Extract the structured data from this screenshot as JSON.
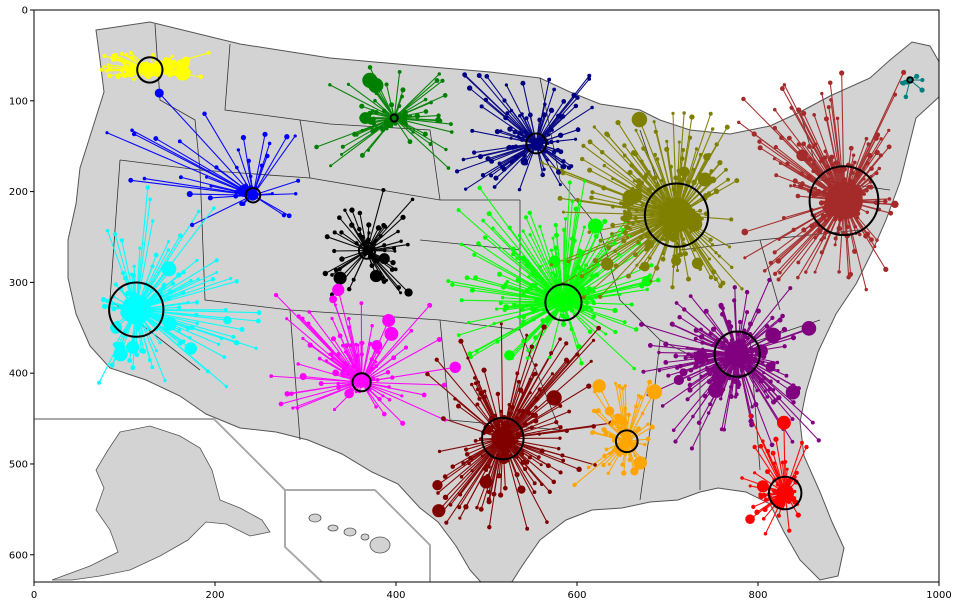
{
  "chart_data": {
    "type": "scatter",
    "title": "",
    "xlabel": "",
    "ylabel": "",
    "xlim": [
      0,
      1000
    ],
    "ylim": [
      630,
      0
    ],
    "y_axis_inverted": true,
    "x_ticks": [
      0,
      200,
      400,
      600,
      800,
      1000
    ],
    "y_ticks": [
      0,
      100,
      200,
      300,
      400,
      500,
      600
    ],
    "x_tick_labels": [
      "0",
      "200",
      "400",
      "600",
      "800",
      "1000"
    ],
    "y_tick_labels": [
      "0",
      "100",
      "200",
      "300",
      "400",
      "500",
      "600"
    ],
    "grid": false,
    "legend": "none",
    "background_image": "map of the United States with county boundaries, including Alaska and Hawaii insets",
    "map_fill_color": "#d3d3d3",
    "hub_ring_color": "#000000",
    "series": [
      {
        "color": "#ffff00",
        "hub": {
          "x": 128,
          "y": 66,
          "radius": 14
        },
        "spread": [
          55,
          45,
          200,
          80
        ],
        "spokes": 120
      },
      {
        "color": "#0000ff",
        "hub": {
          "x": 242,
          "y": 204,
          "radius": 8
        },
        "spread": [
          60,
          70,
          320,
          250
        ],
        "spokes": 45
      },
      {
        "color": "#00ffff",
        "hub": {
          "x": 113,
          "y": 330,
          "radius": 30
        },
        "spread": [
          60,
          180,
          260,
          440
        ],
        "spokes": 130
      },
      {
        "color": "#008000",
        "hub": {
          "x": 398,
          "y": 119,
          "radius": 4
        },
        "spread": [
          310,
          60,
          490,
          180
        ],
        "spokes": 80
      },
      {
        "color": "#000080",
        "hub": {
          "x": 555,
          "y": 147,
          "radius": 11
        },
        "spread": [
          460,
          60,
          630,
          210
        ],
        "spokes": 110
      },
      {
        "color": "#000000",
        "hub": {
          "x": 368,
          "y": 265,
          "radius": 9
        },
        "spread": [
          310,
          190,
          430,
          320
        ],
        "spokes": 70
      },
      {
        "color": "#00ff00",
        "hub": {
          "x": 585,
          "y": 322,
          "radius": 20
        },
        "spread": [
          440,
          180,
          720,
          400
        ],
        "spokes": 220
      },
      {
        "color": "#808000",
        "hub": {
          "x": 710,
          "y": 226,
          "radius": 35
        },
        "spread": [
          550,
          100,
          790,
          330
        ],
        "spokes": 260
      },
      {
        "color": "#a52a2a",
        "hub": {
          "x": 895,
          "y": 210,
          "radius": 38
        },
        "spread": [
          770,
          55,
          965,
          320
        ],
        "spokes": 240
      },
      {
        "color": "#008080",
        "hub": {
          "x": 968,
          "y": 77,
          "radius": 3
        },
        "spread": [
          935,
          55,
          990,
          110
        ],
        "spokes": 8
      },
      {
        "color": "#ff00ff",
        "hub": {
          "x": 362,
          "y": 410,
          "radius": 10
        },
        "spread": [
          250,
          280,
          470,
          460
        ],
        "spokes": 110
      },
      {
        "color": "#800080",
        "hub": {
          "x": 777,
          "y": 379,
          "radius": 25
        },
        "spread": [
          650,
          290,
          880,
          490
        ],
        "spokes": 230
      },
      {
        "color": "#800000",
        "hub": {
          "x": 518,
          "y": 472,
          "radius": 23
        },
        "spread": [
          430,
          330,
          640,
          590
        ],
        "spokes": 200
      },
      {
        "color": "#ffa500",
        "hub": {
          "x": 655,
          "y": 475,
          "radius": 12
        },
        "spread": [
          595,
          390,
          690,
          530
        ],
        "spokes": 80
      },
      {
        "color": "#ff0000",
        "hub": {
          "x": 830,
          "y": 532,
          "radius": 18
        },
        "spread": [
          770,
          440,
          870,
          590
        ],
        "spokes": 60
      }
    ]
  }
}
